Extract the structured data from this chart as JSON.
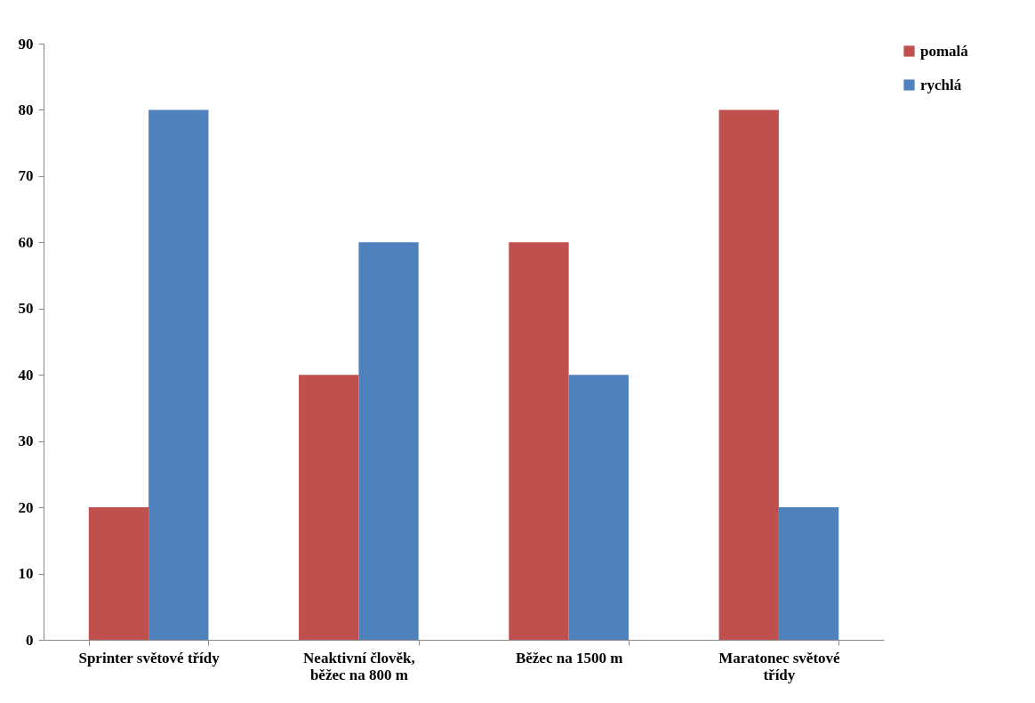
{
  "chart_data": {
    "type": "bar",
    "categories": [
      "Sprinter světové třídy",
      "Neaktivní člověk, běžec na 800 m",
      "Běžec na 1500 m",
      "Maratonec světové třídy"
    ],
    "series": [
      {
        "name": "pomalá",
        "color": "#c0504d",
        "values": [
          20,
          40,
          60,
          80
        ]
      },
      {
        "name": "rychlá",
        "color": "#4f81bd",
        "values": [
          80,
          60,
          40,
          20
        ]
      }
    ],
    "ylim": [
      0,
      90
    ],
    "yticks": [
      0,
      10,
      20,
      30,
      40,
      50,
      60,
      70,
      80,
      90
    ],
    "grid": false,
    "legend": "right"
  }
}
